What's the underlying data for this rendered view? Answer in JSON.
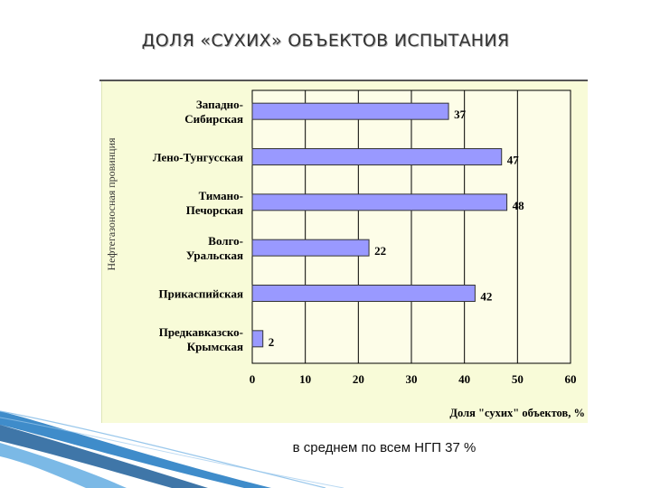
{
  "slide": {
    "title": "ДОЛЯ «СУХИХ» ОБЪЕКТОВ ИСПЫТАНИЯ",
    "footnote": "в среднем по всем НГП 37 %"
  },
  "colors": {
    "bar_fill": "#9999ff",
    "bar_stroke": "#333333",
    "panel_bg": "#f8fbd8",
    "plot_bg": "#fdfde8",
    "grid": "#000000",
    "accent_blue": "#1f6fb5"
  },
  "chart_data": {
    "type": "bar",
    "orientation": "horizontal",
    "title": "",
    "xlabel": "Доля \"сухих\" объектов, %",
    "ylabel": "Нефтегазоносная провинция",
    "xlim": [
      0,
      60
    ],
    "xticks": [
      "0",
      "10",
      "20",
      "30",
      "40",
      "50",
      "60"
    ],
    "grid": true,
    "categories": [
      [
        "Западно-",
        "Сибирская"
      ],
      [
        "Лено-Тунгусская"
      ],
      [
        "Тимано-",
        "Печорская"
      ],
      [
        "Волго-",
        "Уральская"
      ],
      [
        "Прикаспийская"
      ],
      [
        "Предкавказско-",
        "Крымская"
      ]
    ],
    "values": [
      37,
      47,
      48,
      22,
      42,
      2
    ],
    "value_labels": [
      "37",
      "47",
      "48",
      "22",
      "42",
      "2"
    ]
  }
}
